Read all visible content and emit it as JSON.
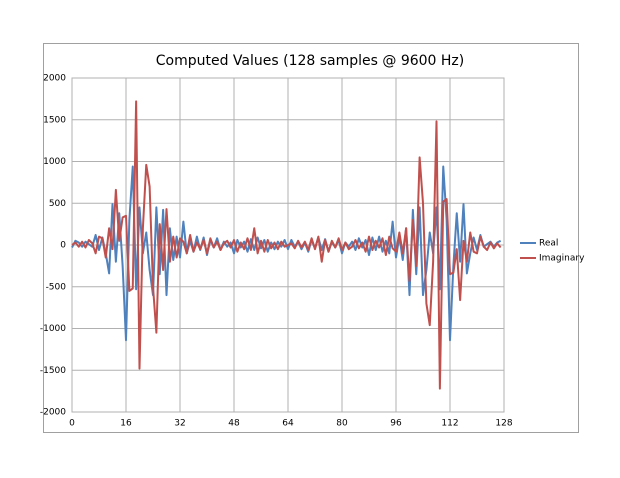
{
  "chart_data": {
    "type": "line",
    "title": "Computed Values (128 samples @ 9600 Hz)",
    "x": [
      0,
      1,
      2,
      3,
      4,
      5,
      6,
      7,
      8,
      9,
      10,
      11,
      12,
      13,
      14,
      15,
      16,
      17,
      18,
      19,
      20,
      21,
      22,
      23,
      24,
      25,
      26,
      27,
      28,
      29,
      30,
      31,
      32,
      33,
      34,
      35,
      36,
      37,
      38,
      39,
      40,
      41,
      42,
      43,
      44,
      45,
      46,
      47,
      48,
      49,
      50,
      51,
      52,
      53,
      54,
      55,
      56,
      57,
      58,
      59,
      60,
      61,
      62,
      63,
      64,
      65,
      66,
      67,
      68,
      69,
      70,
      71,
      72,
      73,
      74,
      75,
      76,
      77,
      78,
      79,
      80,
      81,
      82,
      83,
      84,
      85,
      86,
      87,
      88,
      89,
      90,
      91,
      92,
      93,
      94,
      95,
      96,
      97,
      98,
      99,
      100,
      101,
      102,
      103,
      104,
      105,
      106,
      107,
      108,
      109,
      110,
      111,
      112,
      113,
      114,
      115,
      116,
      117,
      118,
      119,
      120,
      121,
      122,
      123,
      124,
      125,
      126,
      127
    ],
    "series": [
      {
        "name": "Real",
        "color": "#4f81bd",
        "values": [
          -30,
          50,
          30,
          -20,
          40,
          10,
          -20,
          120,
          -60,
          90,
          -100,
          -340,
          490,
          -200,
          380,
          -250,
          -1140,
          300,
          940,
          -530,
          450,
          -100,
          150,
          -300,
          -600,
          450,
          -350,
          420,
          -600,
          200,
          -180,
          100,
          -150,
          280,
          -100,
          50,
          -80,
          100,
          -60,
          90,
          -120,
          60,
          -30,
          80,
          -60,
          40,
          -20,
          30,
          -100,
          60,
          -30,
          40,
          -80,
          70,
          -60,
          90,
          -40,
          60,
          -80,
          30,
          -50,
          40,
          -20,
          60,
          -50,
          60,
          -20,
          40,
          -50,
          30,
          -80,
          60,
          -40,
          90,
          -60,
          70,
          -80,
          40,
          -30,
          60,
          -100,
          30,
          -20,
          40,
          -60,
          80,
          -30,
          60,
          -120,
          90,
          -60,
          100,
          -80,
          50,
          -100,
          280,
          -150,
          100,
          -180,
          200,
          -600,
          420,
          -350,
          450,
          -600,
          -300,
          150,
          -100,
          450,
          -530,
          940,
          300,
          -1140,
          -250,
          380,
          -200,
          490,
          -340,
          -100,
          90,
          -60,
          120,
          -20,
          10,
          40,
          -20,
          30,
          50
        ]
      },
      {
        "name": "Imaginary",
        "color": "#c0504d",
        "values": [
          0,
          30,
          -20,
          40,
          -30,
          60,
          20,
          -100,
          100,
          80,
          -150,
          200,
          -50,
          660,
          50,
          330,
          350,
          -550,
          -520,
          1720,
          -1480,
          200,
          960,
          700,
          -500,
          -1050,
          250,
          -300,
          430,
          -200,
          100,
          -150,
          80,
          40,
          -100,
          120,
          -80,
          30,
          -50,
          60,
          -100,
          80,
          -30,
          40,
          -60,
          20,
          50,
          -30,
          60,
          -80,
          30,
          -50,
          80,
          -60,
          200,
          -100,
          50,
          -80,
          60,
          -40,
          30,
          -50,
          40,
          -20,
          0,
          20,
          -40,
          50,
          -30,
          40,
          -60,
          80,
          -50,
          100,
          -200,
          60,
          -80,
          50,
          -30,
          80,
          -60,
          30,
          -50,
          -20,
          60,
          -40,
          30,
          -80,
          100,
          -60,
          50,
          -30,
          80,
          -120,
          100,
          -40,
          -80,
          150,
          -100,
          200,
          -430,
          300,
          -250,
          1050,
          500,
          -700,
          -960,
          -200,
          1480,
          -1720,
          520,
          550,
          -350,
          -330,
          -50,
          -660,
          50,
          -200,
          150,
          -80,
          -100,
          100,
          -20,
          -60,
          30,
          -40,
          20,
          -30
        ]
      }
    ],
    "xlim": [
      0,
      128
    ],
    "xticks": [
      0,
      16,
      32,
      48,
      64,
      80,
      96,
      112,
      128
    ],
    "ylim": [
      -2000,
      2000
    ],
    "yticks": [
      -2000,
      -1500,
      -1000,
      -500,
      0,
      500,
      1000,
      1500,
      2000
    ],
    "grid": true,
    "legend": "right"
  }
}
